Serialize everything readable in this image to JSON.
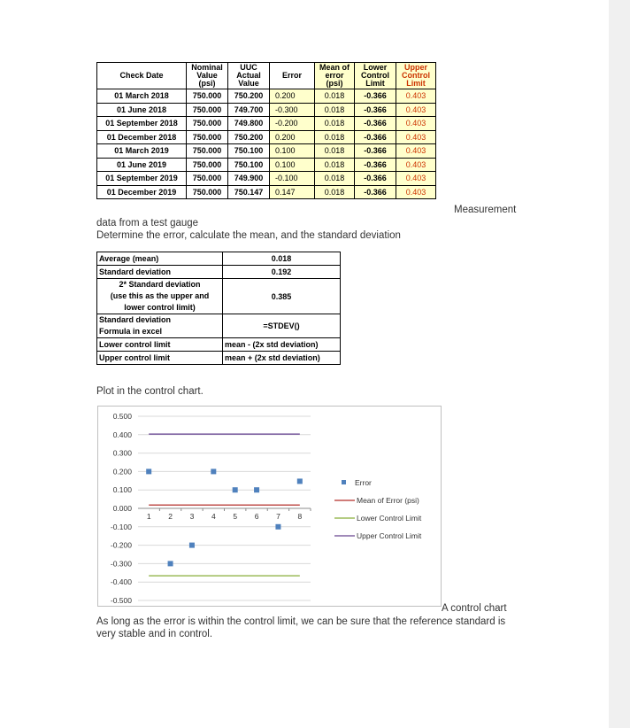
{
  "measurement_table": {
    "headers": {
      "check_date": "Check Date",
      "nominal": [
        "Nominal",
        "Value",
        "(psi)"
      ],
      "actual": [
        "UUC",
        "Actual",
        "Value"
      ],
      "error": "Error",
      "mean": [
        "Mean of",
        "error",
        "(psi)"
      ],
      "lcl": [
        "Lower",
        "Control",
        "Limit"
      ],
      "ucl": [
        "Upper",
        "Control",
        "Limit"
      ]
    },
    "rows": [
      {
        "date": "01 March 2018",
        "nominal": "750.000",
        "actual": "750.200",
        "error": "0.200",
        "mean": "0.018",
        "lcl": "-0.366",
        "ucl": "0.403"
      },
      {
        "date": "01 June 2018",
        "nominal": "750.000",
        "actual": "749.700",
        "error": "-0.300",
        "mean": "0.018",
        "lcl": "-0.366",
        "ucl": "0.403"
      },
      {
        "date": "01 September 2018",
        "nominal": "750.000",
        "actual": "749.800",
        "error": "-0.200",
        "mean": "0.018",
        "lcl": "-0.366",
        "ucl": "0.403"
      },
      {
        "date": "01 December 2018",
        "nominal": "750.000",
        "actual": "750.200",
        "error": "0.200",
        "mean": "0.018",
        "lcl": "-0.366",
        "ucl": "0.403"
      },
      {
        "date": "01 March 2019",
        "nominal": "750.000",
        "actual": "750.100",
        "error": "0.100",
        "mean": "0.018",
        "lcl": "-0.366",
        "ucl": "0.403"
      },
      {
        "date": "01 June 2019",
        "nominal": "750.000",
        "actual": "750.100",
        "error": "0.100",
        "mean": "0.018",
        "lcl": "-0.366",
        "ucl": "0.403"
      },
      {
        "date": "01 September 2019",
        "nominal": "750.000",
        "actual": "749.900",
        "error": "-0.100",
        "mean": "0.018",
        "lcl": "-0.366",
        "ucl": "0.403"
      },
      {
        "date": "01 December 2019",
        "nominal": "750.000",
        "actual": "750.147",
        "error": "0.147",
        "mean": "0.018",
        "lcl": "-0.366",
        "ucl": "0.403"
      }
    ]
  },
  "caption_measurement": "Measurement",
  "caption_measurement_2": "data from a test gauge",
  "instruction_1": "Determine the error, calculate the mean, and the standard deviation",
  "stats_table": {
    "rows": [
      {
        "key": [
          "Average (mean)"
        ],
        "value": "0.018"
      },
      {
        "key": [
          "Standard deviation"
        ],
        "value": "0.192"
      },
      {
        "key": [
          "2* Standard deviation",
          "(use this as the upper and",
          "lower control limit)"
        ],
        "value": "0.385"
      },
      {
        "key": [
          "Standard deviation",
          "Formula in excel"
        ],
        "value": "=STDEV()"
      },
      {
        "key": [
          "Lower control limit"
        ],
        "value": "mean - (2x std deviation)"
      },
      {
        "key": [
          "Upper control limit"
        ],
        "value": "mean + (2x std deviation)"
      }
    ]
  },
  "instruction_2": "Plot in the control chart.",
  "chart_caption": "A control chart",
  "conclusion": [
    "As long as the error is within the control limit, we can be sure that the reference standard is",
    "very stable and in control."
  ],
  "chart_data": {
    "type": "line",
    "title": "",
    "xlabel": "",
    "ylabel": "",
    "x": [
      1,
      2,
      3,
      4,
      5,
      6,
      7,
      8
    ],
    "ylim": [
      -0.5,
      0.5
    ],
    "y_ticks": [
      "0.500",
      "0.400",
      "0.300",
      "0.200",
      "0.100",
      "0.000",
      "-0.100",
      "-0.200",
      "-0.300",
      "-0.400",
      "-0.500"
    ],
    "x_ticks": [
      "1",
      "2",
      "3",
      "4",
      "5",
      "6",
      "7",
      "8"
    ],
    "grid": true,
    "legend_position": "right",
    "series": [
      {
        "name": "Error",
        "kind": "scatter",
        "color": "#4f81bd",
        "values": [
          0.2,
          -0.3,
          -0.2,
          0.2,
          0.1,
          0.1,
          -0.1,
          0.147
        ]
      },
      {
        "name": "Mean of Error (psi)",
        "kind": "line",
        "color": "#c0504d",
        "values": [
          0.018,
          0.018,
          0.018,
          0.018,
          0.018,
          0.018,
          0.018,
          0.018
        ]
      },
      {
        "name": "Lower Control Limit",
        "kind": "line",
        "color": "#9bbb59",
        "values": [
          -0.366,
          -0.366,
          -0.366,
          -0.366,
          -0.366,
          -0.366,
          -0.366,
          -0.366
        ]
      },
      {
        "name": "Upper Control Limit",
        "kind": "line",
        "color": "#8064a2",
        "values": [
          0.403,
          0.403,
          0.403,
          0.403,
          0.403,
          0.403,
          0.403,
          0.403
        ]
      }
    ]
  }
}
